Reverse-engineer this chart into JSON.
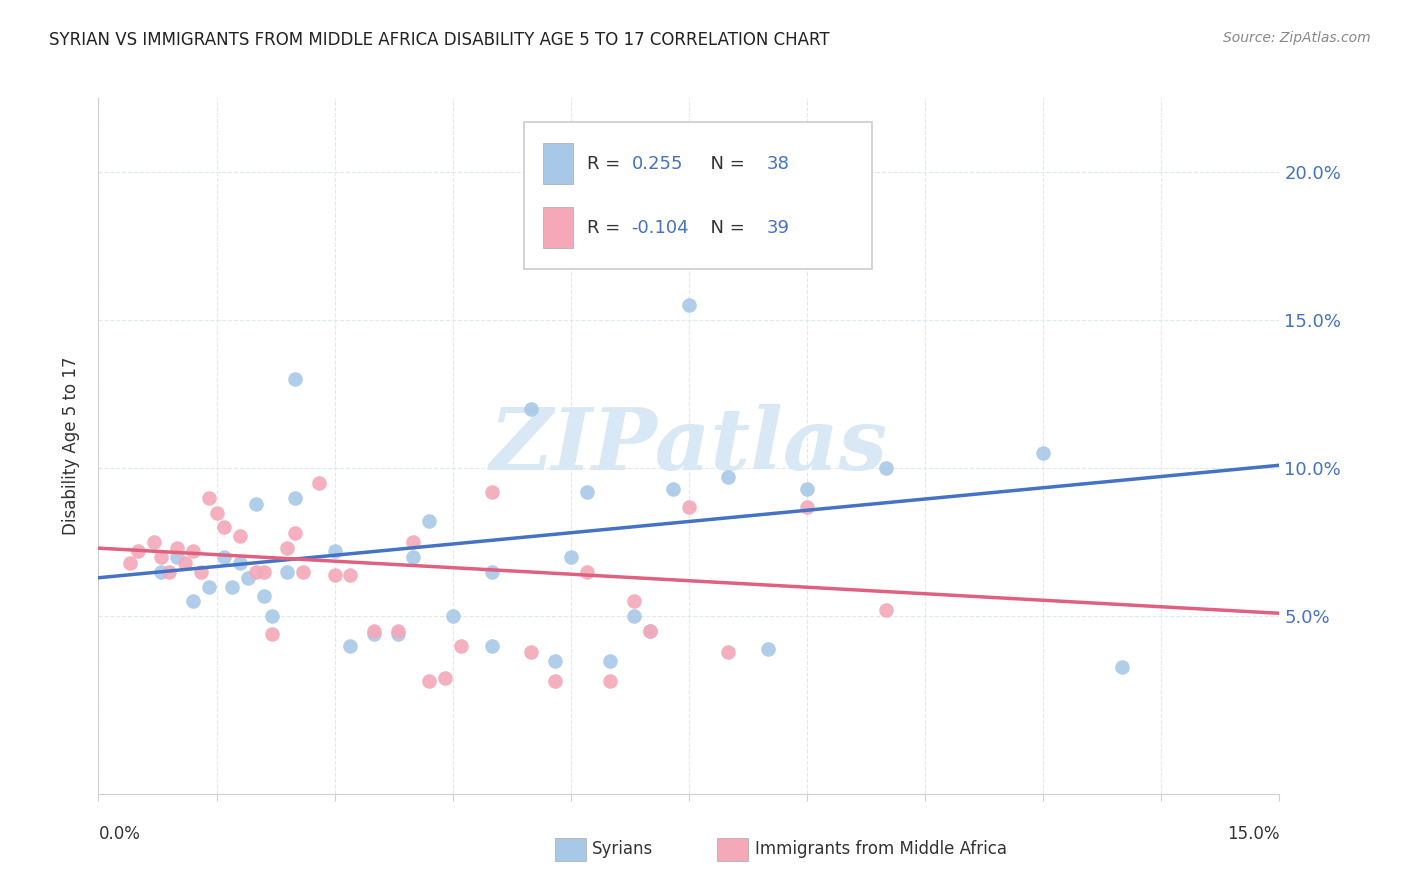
{
  "title": "SYRIAN VS IMMIGRANTS FROM MIDDLE AFRICA DISABILITY AGE 5 TO 17 CORRELATION CHART",
  "source": "Source: ZipAtlas.com",
  "ylabel": "Disability Age 5 to 17",
  "xlim": [
    0.0,
    0.15
  ],
  "ylim": [
    -0.01,
    0.225
  ],
  "right_ytick_vals": [
    0.05,
    0.1,
    0.15,
    0.2
  ],
  "right_ytick_labels": [
    "5.0%",
    "10.0%",
    "15.0%",
    "20.0%"
  ],
  "xtick_vals": [
    0.0,
    0.015,
    0.03,
    0.045,
    0.06,
    0.075,
    0.09,
    0.105,
    0.12,
    0.135,
    0.15
  ],
  "blue_color": "#a8c8e8",
  "pink_color": "#f4a8b8",
  "blue_line_color": "#4472c4",
  "pink_line_color": "#e06080",
  "right_tick_color": "#4472c4",
  "watermark_color": "#d8e8f4",
  "grid_color": "#e0e8f0",
  "legend_label1": "Syrians",
  "legend_label2": "Immigrants from Middle Africa",
  "blue_x": [
    0.008,
    0.01,
    0.012,
    0.014,
    0.016,
    0.017,
    0.018,
    0.019,
    0.02,
    0.021,
    0.022,
    0.024,
    0.025,
    0.025,
    0.03,
    0.032,
    0.035,
    0.038,
    0.04,
    0.042,
    0.045,
    0.05,
    0.05,
    0.055,
    0.058,
    0.06,
    0.062,
    0.065,
    0.068,
    0.07,
    0.073,
    0.075,
    0.08,
    0.085,
    0.09,
    0.1,
    0.12,
    0.13
  ],
  "blue_y": [
    0.065,
    0.07,
    0.055,
    0.06,
    0.07,
    0.06,
    0.068,
    0.063,
    0.088,
    0.057,
    0.05,
    0.065,
    0.13,
    0.09,
    0.072,
    0.04,
    0.044,
    0.044,
    0.07,
    0.082,
    0.05,
    0.065,
    0.04,
    0.12,
    0.035,
    0.07,
    0.092,
    0.035,
    0.05,
    0.045,
    0.093,
    0.155,
    0.097,
    0.039,
    0.093,
    0.1,
    0.105,
    0.033
  ],
  "pink_x": [
    0.004,
    0.005,
    0.007,
    0.008,
    0.009,
    0.01,
    0.011,
    0.012,
    0.013,
    0.014,
    0.015,
    0.016,
    0.018,
    0.02,
    0.021,
    0.022,
    0.024,
    0.025,
    0.026,
    0.028,
    0.03,
    0.032,
    0.035,
    0.038,
    0.04,
    0.042,
    0.044,
    0.046,
    0.05,
    0.055,
    0.058,
    0.062,
    0.065,
    0.068,
    0.07,
    0.075,
    0.08,
    0.09,
    0.1
  ],
  "pink_y": [
    0.068,
    0.072,
    0.075,
    0.07,
    0.065,
    0.073,
    0.068,
    0.072,
    0.065,
    0.09,
    0.085,
    0.08,
    0.077,
    0.065,
    0.065,
    0.044,
    0.073,
    0.078,
    0.065,
    0.095,
    0.064,
    0.064,
    0.045,
    0.045,
    0.075,
    0.028,
    0.029,
    0.04,
    0.092,
    0.038,
    0.028,
    0.065,
    0.028,
    0.055,
    0.045,
    0.087,
    0.038,
    0.087,
    0.052
  ],
  "blue_trend_x": [
    0.0,
    0.15
  ],
  "blue_trend_y": [
    0.063,
    0.101
  ],
  "pink_trend_x": [
    0.0,
    0.15
  ],
  "pink_trend_y": [
    0.073,
    0.051
  ]
}
